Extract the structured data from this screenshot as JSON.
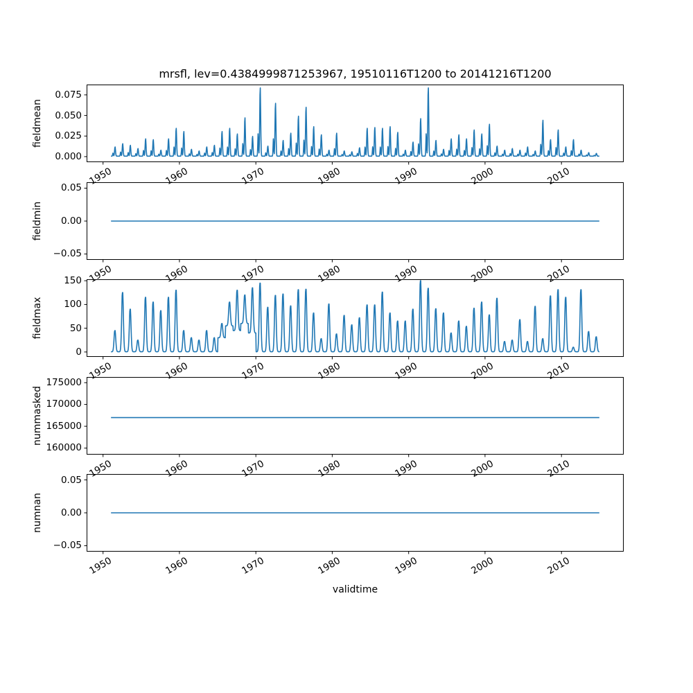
{
  "chart_data": {
    "type": "line",
    "title": "mrsfl, lev=0.4384999871253967, 19510116T1200 to 20141216T1200",
    "variable": "mrsfl",
    "level": "0.4384999871253967",
    "time_start": "19510116T1200",
    "time_end": "20141216T1200",
    "line_color": "#1f77b4",
    "background_color": "#ffffff",
    "grid": false,
    "legend": false,
    "x_axis": {
      "label": "validtime",
      "range": [
        1947.85,
        2018.15
      ],
      "data_start": 1951.04,
      "data_end": 2014.96,
      "ticks": [
        1950,
        1960,
        1970,
        1980,
        1990,
        2000,
        2010
      ],
      "tick_labels": [
        "1950",
        "1960",
        "1970",
        "1980",
        "1990",
        "2000",
        "2010"
      ],
      "tick_rotation_deg": 30
    },
    "year_start": 1951,
    "subplots": [
      {
        "name": "fieldmean",
        "ylabel": "fieldmean",
        "ylim": [
          -0.0067,
          0.0875
        ],
        "yticks": [
          0.0,
          0.025,
          0.05,
          0.075
        ],
        "ytick_labels": [
          "0.000",
          "0.025",
          "0.050",
          "0.075"
        ],
        "series_type": "annual_spikes",
        "baseline": 0.0006,
        "annual_peaks": [
          0.012,
          0.016,
          0.014,
          0.01,
          0.022,
          0.021,
          0.008,
          0.022,
          0.035,
          0.031,
          0.009,
          0.007,
          0.012,
          0.014,
          0.031,
          0.035,
          0.028,
          0.048,
          0.025,
          0.085,
          0.013,
          0.066,
          0.02,
          0.029,
          0.05,
          0.061,
          0.037,
          0.027,
          0.008,
          0.029,
          0.007,
          0.006,
          0.011,
          0.035,
          0.036,
          0.035,
          0.037,
          0.03,
          0.008,
          0.018,
          0.047,
          0.085,
          0.02,
          0.009,
          0.022,
          0.027,
          0.022,
          0.033,
          0.028,
          0.04,
          0.013,
          0.008,
          0.01,
          0.008,
          0.012,
          0.007,
          0.045,
          0.021,
          0.033,
          0.012,
          0.021,
          0.008,
          0.005,
          0.004
        ]
      },
      {
        "name": "fieldmin",
        "ylabel": "fieldmin",
        "ylim": [
          -0.059,
          0.059
        ],
        "yticks": [
          -0.05,
          0.0,
          0.05
        ],
        "ytick_labels": [
          "−0.05",
          "0.00",
          "0.05"
        ],
        "series_type": "flat",
        "value": 0.0
      },
      {
        "name": "fieldmax",
        "ylabel": "fieldmax",
        "ylim": [
          -10.3,
          153
        ],
        "yticks": [
          0,
          50,
          100,
          150
        ],
        "ytick_labels": [
          "0",
          "50",
          "100",
          "150"
        ],
        "series_type": "annual_spikes",
        "baseline": 0.5,
        "annual_peaks": [
          45,
          125,
          90,
          25,
          115,
          105,
          87,
          115,
          130,
          45,
          30,
          25,
          45,
          30,
          60,
          105,
          130,
          120,
          135,
          145,
          94,
          119,
          122,
          97,
          131,
          132,
          82,
          28,
          101,
          38,
          77,
          57,
          72,
          99,
          99,
          126,
          82,
          65,
          65,
          90,
          150,
          134,
          91,
          82,
          40,
          65,
          54,
          92,
          105,
          78,
          113,
          22,
          25,
          68,
          22,
          96,
          28,
          118,
          131,
          115,
          10,
          131,
          43,
          32
        ],
        "valleys": {
          "1965": 30,
          "1966": 55,
          "1967": 45,
          "1968": 60,
          "1969": 40
        }
      },
      {
        "name": "nummasked",
        "ylabel": "nummasked",
        "ylim": [
          158500,
          176300
        ],
        "yticks": [
          160000,
          165000,
          170000,
          175000
        ],
        "ytick_labels": [
          "160000",
          "165000",
          "170000",
          "175000"
        ],
        "series_type": "flat",
        "value": 167000
      },
      {
        "name": "numnan",
        "ylabel": "numnan",
        "ylim": [
          -0.059,
          0.059
        ],
        "yticks": [
          -0.05,
          0.0,
          0.05
        ],
        "ytick_labels": [
          "−0.05",
          "0.00",
          "0.05"
        ],
        "series_type": "flat",
        "value": 0.0
      }
    ]
  }
}
